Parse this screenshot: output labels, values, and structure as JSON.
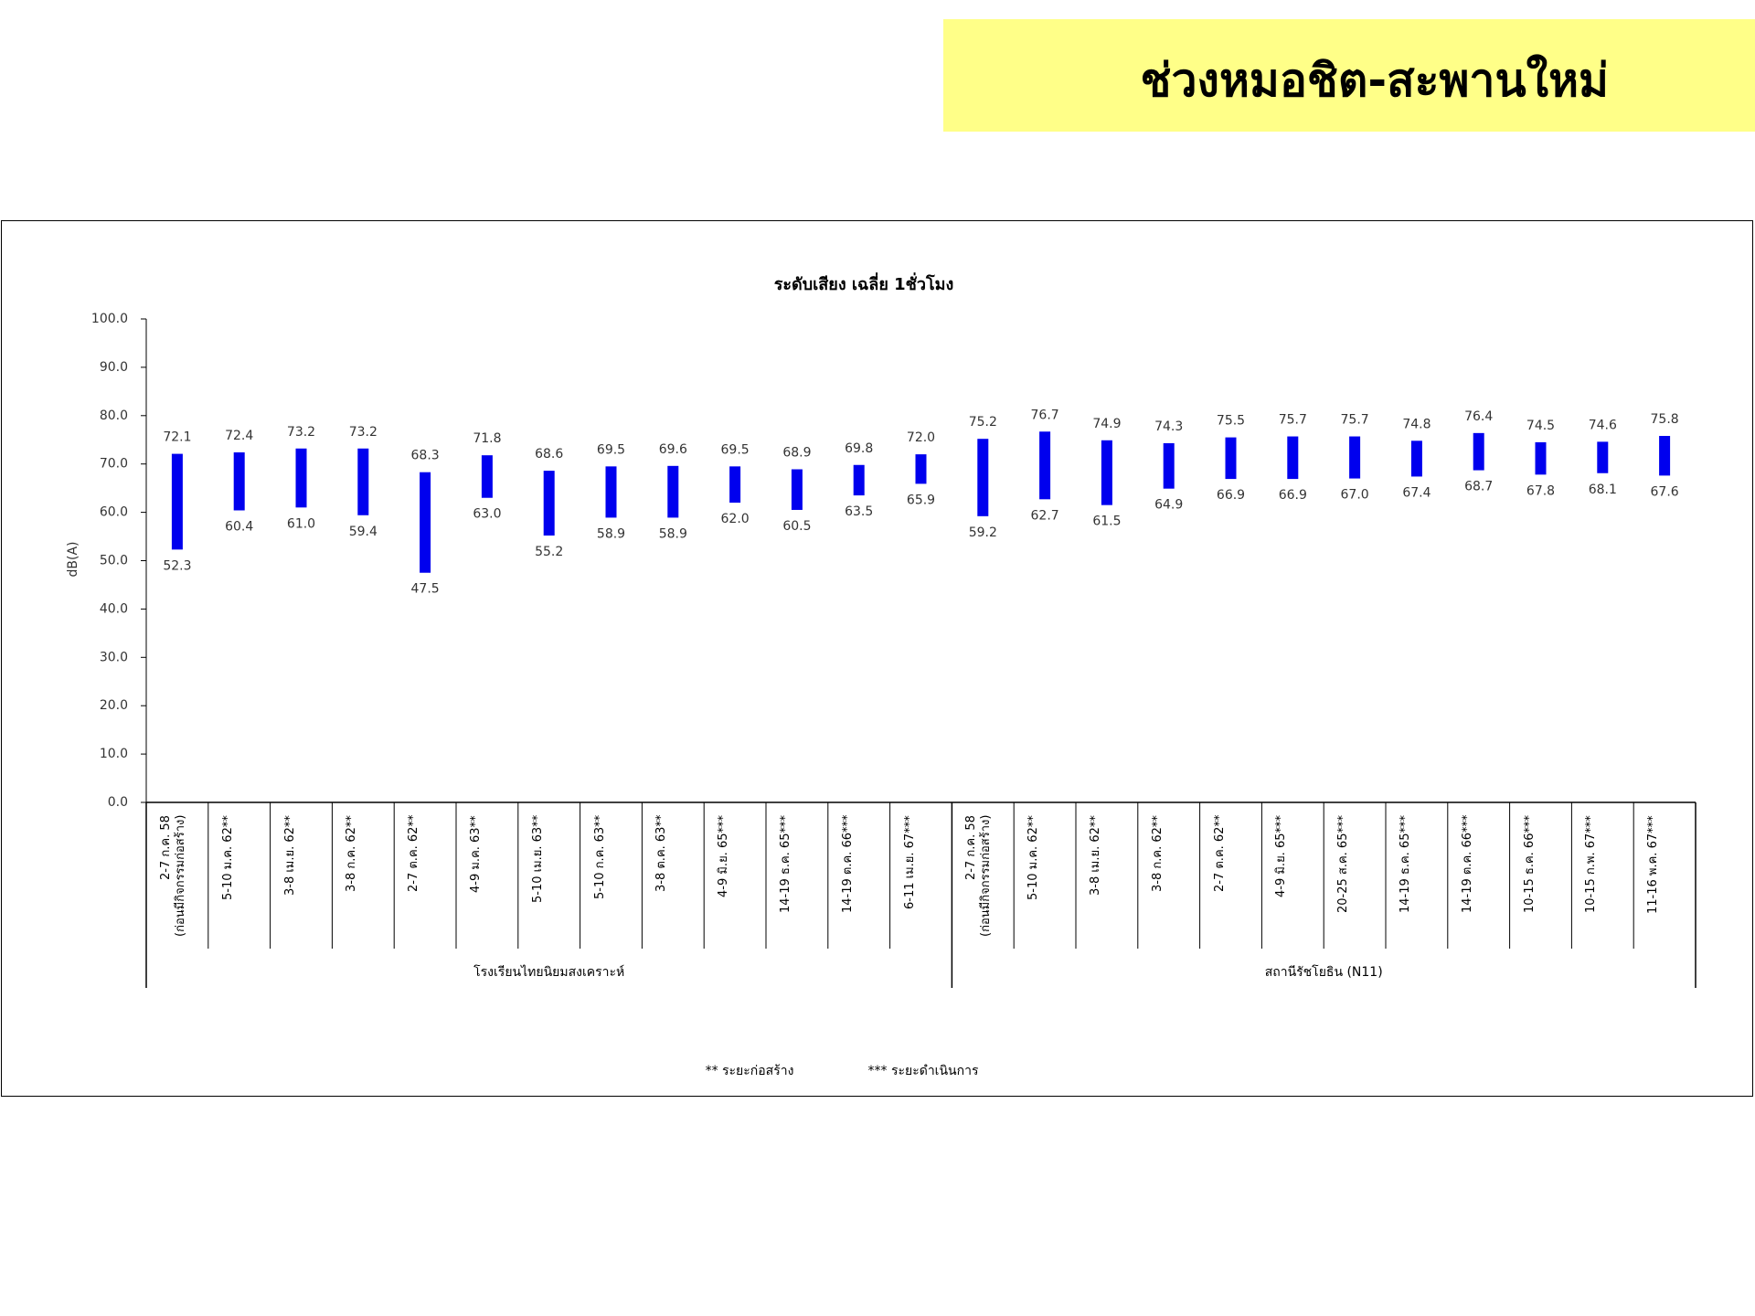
{
  "header": {
    "title": "ช่วงหมอชิต-สะพานใหม่"
  },
  "chart_data": {
    "type": "range-bar",
    "title": "ระดับเสียง เฉลี่ย 1ชั่วโมง",
    "ylabel": "dB(A)",
    "color": "#0000ee",
    "ylim": [
      0,
      100
    ],
    "yticks": [
      {
        "value": 0,
        "label": "0.0"
      },
      {
        "value": 10,
        "label": "10.0"
      },
      {
        "value": 20,
        "label": "20.0"
      },
      {
        "value": 30,
        "label": "30.0"
      },
      {
        "value": 40,
        "label": "40.0"
      },
      {
        "value": 50,
        "label": "50.0"
      },
      {
        "value": 60,
        "label": "60.0"
      },
      {
        "value": 70,
        "label": "70.0"
      },
      {
        "value": 80,
        "label": "80.0"
      },
      {
        "value": 90,
        "label": "90.0"
      },
      {
        "value": 100,
        "label": "100.0"
      }
    ],
    "groups": [
      {
        "name": "โรงเรียนไทยนิยมสงเคราะห์",
        "categories": [
          "2-7 ก.ค. 58\n(ก่อนมีกิจกรรมก่อสร้าง)",
          "5-10 ม.ค. 62**",
          "3-8 เม.ย. 62**",
          "3-8 ก.ค. 62**",
          "2-7 ต.ค. 62**",
          "4-9 ม.ค. 63**",
          "5-10 เม.ย. 63**",
          "5-10 ก.ค. 63**",
          "3-8 ต.ค. 63**",
          "4-9 มิ.ย. 65***",
          "14-19 ธ.ค. 65***",
          "14-19 ต.ค. 66***",
          "6-11 เม.ย. 67***"
        ],
        "series": [
          {
            "values": [
              52.3,
              60.4,
              61.0,
              59.4,
              47.5,
              63.0,
              55.2,
              58.9,
              58.9,
              62.0,
              60.5,
              63.5,
              65.9
            ],
            "value_labels": [
              "52.3",
              "60.4",
              "61.0",
              "59.4",
              "47.5",
              "63.0",
              "55.2",
              "58.9",
              "58.9",
              "62.0",
              "60.5",
              "63.5",
              "65.9"
            ]
          },
          {
            "values": [
              72.1,
              72.4,
              73.2,
              73.2,
              68.3,
              71.8,
              68.6,
              69.5,
              69.6,
              69.5,
              68.9,
              69.8,
              72.0
            ],
            "value_labels": [
              "72.1",
              "72.4",
              "73.2",
              "73.2",
              "68.3",
              "71.8",
              "68.6",
              "69.5",
              "69.6",
              "69.5",
              "68.9",
              "69.8",
              "72.0"
            ]
          }
        ]
      },
      {
        "name": "สถานีรัชโยธิน (N11)",
        "categories": [
          "2-7 ก.ค. 58\n(ก่อนมีกิจกรรมก่อสร้าง)",
          "5-10 ม.ค. 62**",
          "3-8 เม.ย. 62**",
          "3-8 ก.ค. 62**",
          "2-7 ต.ค. 62**",
          "4-9 มิ.ย. 65***",
          "20-25 ส.ค. 65***",
          "14-19 ธ.ค. 65***",
          "14-19 ต.ค. 66***",
          "10-15 ธ.ค. 66***",
          "10-15 ก.พ. 67***",
          "11-16 พ.ค. 67***"
        ],
        "series": [
          {
            "values": [
              59.2,
              62.7,
              61.5,
              64.9,
              66.9,
              66.9,
              67.0,
              67.4,
              68.7,
              67.8,
              68.1,
              67.6
            ],
            "value_labels": [
              "59.2",
              "62.7",
              "61.5",
              "64.9",
              "66.9",
              "66.9",
              "67.0",
              "67.4",
              "68.7",
              "67.8",
              "68.1",
              "67.6"
            ]
          },
          {
            "values": [
              75.2,
              76.7,
              74.9,
              74.3,
              75.5,
              75.7,
              75.7,
              74.8,
              76.4,
              74.5,
              74.6,
              75.8
            ],
            "value_labels": [
              "75.2",
              "76.7",
              "74.9",
              "74.3",
              "75.5",
              "75.7",
              "75.7",
              "74.8",
              "76.4",
              "74.5",
              "74.6",
              "75.8"
            ]
          }
        ]
      }
    ],
    "footnotes": [
      "** ระยะก่อสร้าง",
      "*** ระยะดำเนินการ"
    ]
  }
}
